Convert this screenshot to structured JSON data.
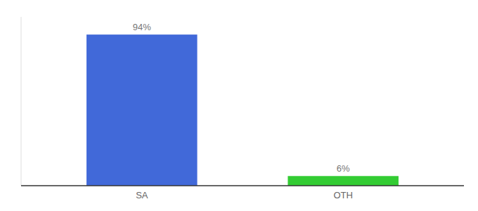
{
  "chart_data": {
    "type": "bar",
    "categories": [
      "SA",
      "OTH"
    ],
    "values": [
      94,
      6
    ],
    "value_labels": [
      "94%",
      "6%"
    ],
    "colors": [
      "#4169d9",
      "#33cc33"
    ],
    "ylim": [
      0,
      105
    ],
    "yticks": [],
    "data_labels": true,
    "tick_labels": "x",
    "grid": false
  }
}
